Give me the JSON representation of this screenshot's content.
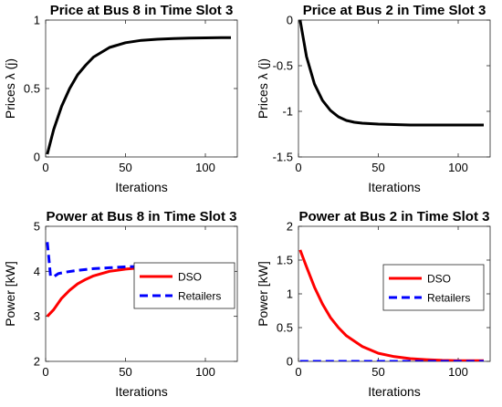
{
  "chart_data": [
    {
      "type": "line",
      "title": "Price at Bus 8 in Time Slot 3",
      "xlabel": "Iterations",
      "ylabel": "Prices λ (j)",
      "xlim": [
        0,
        120
      ],
      "ylim": [
        0,
        1
      ],
      "xticks": [
        0,
        50,
        100
      ],
      "yticks": [
        0,
        0.5,
        1
      ],
      "grid": false,
      "series": [
        {
          "color": "#000000",
          "style": "solid",
          "x": [
            1,
            5,
            10,
            15,
            20,
            25,
            30,
            40,
            50,
            60,
            70,
            80,
            90,
            100,
            110,
            116
          ],
          "values": [
            0.02,
            0.2,
            0.37,
            0.5,
            0.6,
            0.67,
            0.73,
            0.8,
            0.835,
            0.852,
            0.86,
            0.865,
            0.868,
            0.87,
            0.872,
            0.872
          ]
        }
      ]
    },
    {
      "type": "line",
      "title": "Price at Bus 2 in Time Slot 3",
      "xlabel": "Iterations",
      "ylabel": "Prices λ (j)",
      "xlim": [
        0,
        120
      ],
      "ylim": [
        -1.5,
        0
      ],
      "xticks": [
        0,
        50,
        100
      ],
      "yticks": [
        -1.5,
        -1,
        -0.5,
        0
      ],
      "grid": false,
      "series": [
        {
          "color": "#000000",
          "style": "solid",
          "x": [
            1,
            5,
            10,
            15,
            20,
            25,
            30,
            35,
            40,
            50,
            60,
            70,
            80,
            90,
            100,
            110,
            116
          ],
          "values": [
            0.0,
            -0.4,
            -0.7,
            -0.88,
            -0.99,
            -1.06,
            -1.1,
            -1.12,
            -1.13,
            -1.14,
            -1.145,
            -1.15,
            -1.15,
            -1.15,
            -1.15,
            -1.15,
            -1.15
          ]
        }
      ]
    },
    {
      "type": "line",
      "title": "Power at Bus 8 in Time Slot 3",
      "xlabel": "Iterations",
      "ylabel": "Power [kW]",
      "xlim": [
        0,
        120
      ],
      "ylim": [
        2,
        5
      ],
      "xticks": [
        0,
        50,
        100
      ],
      "yticks": [
        2,
        3,
        4,
        5
      ],
      "grid": false,
      "legend": "right",
      "series": [
        {
          "name": "DSO",
          "color": "#ff0000",
          "style": "solid",
          "x": [
            1,
            5,
            10,
            15,
            20,
            25,
            30,
            40,
            50,
            60,
            70,
            80,
            90,
            100,
            110,
            116
          ],
          "values": [
            3.0,
            3.15,
            3.4,
            3.58,
            3.72,
            3.82,
            3.9,
            4.0,
            4.05,
            4.08,
            4.1,
            4.11,
            4.115,
            4.12,
            4.12,
            4.12
          ]
        },
        {
          "name": "Retailers",
          "color": "#0000ff",
          "style": "dashed",
          "x": [
            1,
            2,
            3,
            5,
            8,
            12,
            20,
            30,
            40,
            50,
            60,
            70,
            80,
            90,
            100,
            110,
            116
          ],
          "values": [
            4.65,
            4.3,
            3.9,
            3.88,
            3.95,
            3.98,
            4.02,
            4.06,
            4.08,
            4.1,
            4.11,
            4.11,
            4.12,
            4.12,
            4.12,
            4.12,
            4.12
          ]
        }
      ]
    },
    {
      "type": "line",
      "title": "Power at Bus 2 in Time Slot 3",
      "xlabel": "Iterations",
      "ylabel": "Power [kW]",
      "xlim": [
        0,
        120
      ],
      "ylim": [
        0,
        2
      ],
      "xticks": [
        0,
        50,
        100
      ],
      "yticks": [
        0,
        0.5,
        1,
        1.5,
        2
      ],
      "grid": false,
      "legend": "right",
      "series": [
        {
          "name": "DSO",
          "color": "#ff0000",
          "style": "solid",
          "x": [
            1,
            5,
            10,
            15,
            20,
            25,
            30,
            40,
            50,
            60,
            70,
            80,
            90,
            100,
            110,
            116
          ],
          "values": [
            1.65,
            1.4,
            1.1,
            0.85,
            0.65,
            0.5,
            0.38,
            0.22,
            0.12,
            0.07,
            0.04,
            0.025,
            0.015,
            0.01,
            0.01,
            0.01
          ]
        },
        {
          "name": "Retailers",
          "color": "#0000ff",
          "style": "dashed",
          "x": [
            1,
            116
          ],
          "values": [
            0.0,
            0.0
          ]
        }
      ]
    }
  ]
}
